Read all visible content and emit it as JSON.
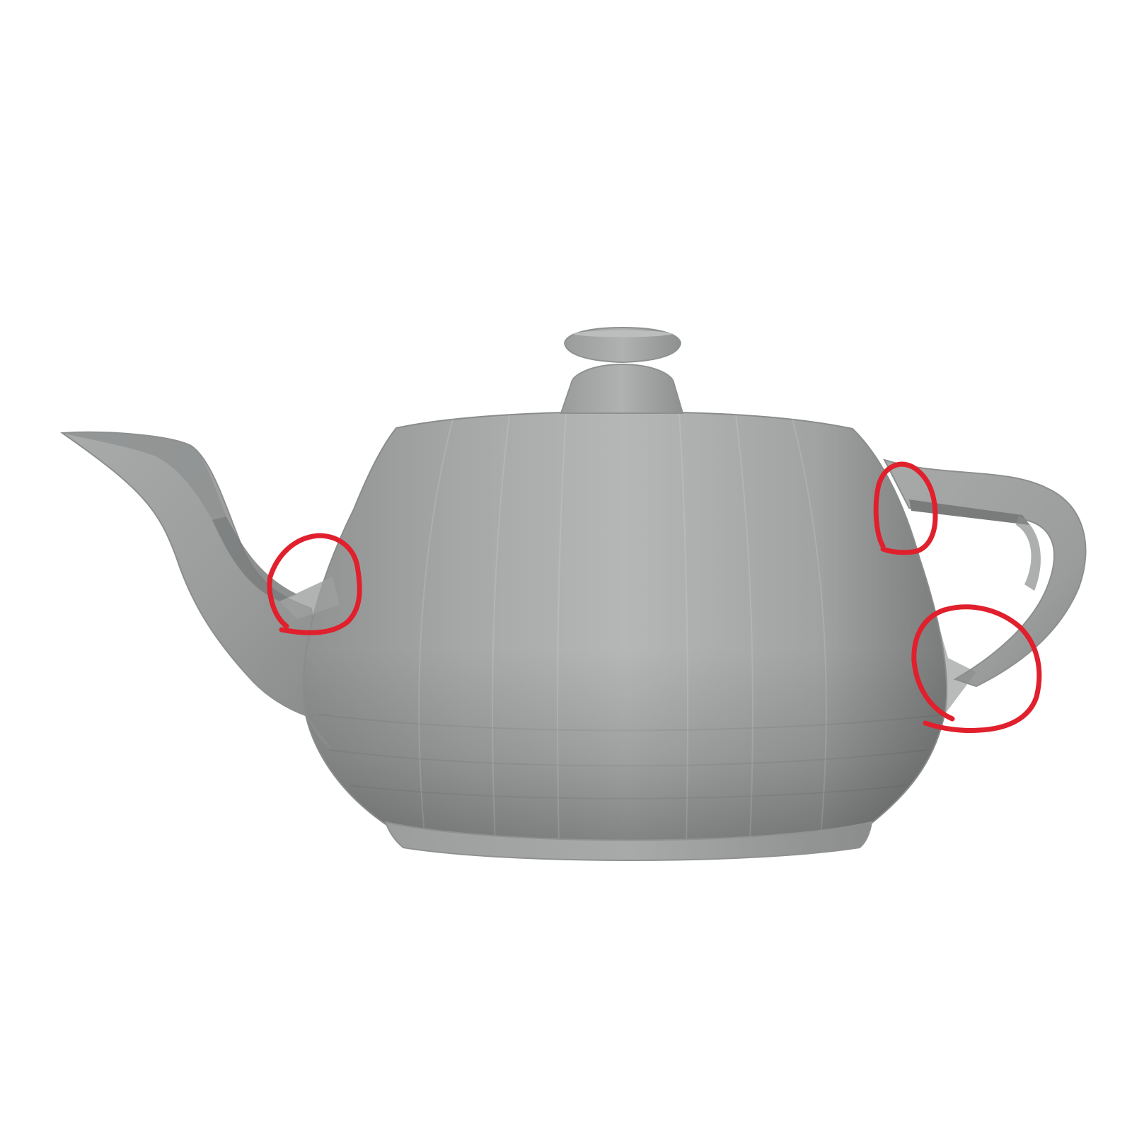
{
  "scene": {
    "subject": "teapot-3d-render",
    "shading": "flat-faceted",
    "background_color": "#ffffff",
    "colors": {
      "body_light": "#b7b9b9",
      "body_mid": "#a3a5a5",
      "body_dark": "#7f8181",
      "body_shadow": "#6b6d6d",
      "annotation_red": "#e0202c"
    }
  },
  "annotations": [
    {
      "name": "spout-joint-circle",
      "icon": "red-circle-mark"
    },
    {
      "name": "handle-top-joint-circle",
      "icon": "red-circle-mark"
    },
    {
      "name": "handle-bottom-joint-circle",
      "icon": "red-circle-mark"
    }
  ]
}
